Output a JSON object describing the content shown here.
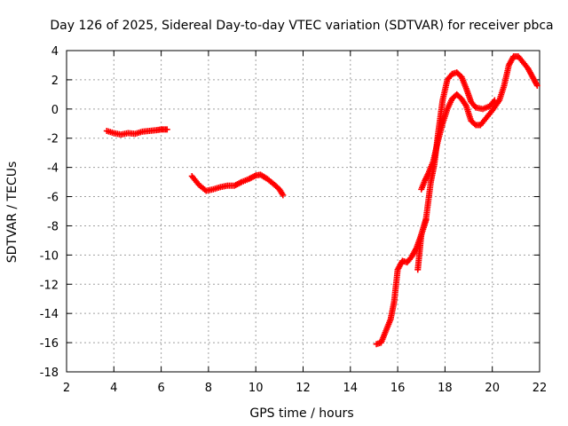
{
  "chart_data": {
    "type": "scatter",
    "title": "Day 126 of 2025, Sidereal Day-to-day VTEC variation (SDTVAR) for receiver pbca",
    "xlabel": "GPS time / hours",
    "ylabel": "SDTVAR / TECUs",
    "xlim": [
      2,
      22
    ],
    "ylim": [
      -18,
      4
    ],
    "x_ticks": [
      2,
      4,
      6,
      8,
      10,
      12,
      14,
      16,
      18,
      20,
      22
    ],
    "y_ticks": [
      -18,
      -16,
      -14,
      -12,
      -10,
      -8,
      -6,
      -4,
      -2,
      0,
      2,
      4
    ],
    "x_tick_labels": [
      "2",
      "4",
      "6",
      "8",
      "10",
      "12",
      "14",
      "16",
      "18",
      "20",
      "22"
    ],
    "y_tick_labels": [
      "-18",
      "-16",
      "-14",
      "-12",
      "-10",
      "-8",
      "-6",
      "-4",
      "-2",
      "0",
      "2",
      "4"
    ],
    "grid": true,
    "marker": "+",
    "color": "#ff0000",
    "series": [
      {
        "name": "segment-1",
        "x": [
          3.7,
          4.0,
          4.3,
          4.6,
          4.9,
          5.2,
          5.5,
          5.8,
          6.0,
          6.25
        ],
        "y": [
          -1.5,
          -1.65,
          -1.75,
          -1.65,
          -1.7,
          -1.55,
          -1.5,
          -1.45,
          -1.4,
          -1.4
        ]
      },
      {
        "name": "segment-2",
        "x": [
          7.3,
          7.6,
          7.9,
          8.2,
          8.5,
          8.8,
          9.1,
          9.4,
          9.7,
          10.0,
          10.2,
          10.5,
          10.8,
          11.0,
          11.15
        ],
        "y": [
          -4.6,
          -5.2,
          -5.6,
          -5.5,
          -5.35,
          -5.25,
          -5.25,
          -5.0,
          -4.8,
          -4.55,
          -4.5,
          -4.8,
          -5.2,
          -5.5,
          -5.9
        ]
      },
      {
        "name": "segment-3a",
        "x": [
          15.1,
          15.3,
          15.5,
          15.7,
          15.85,
          16.0,
          16.2,
          16.4,
          16.6,
          16.8,
          17.0,
          17.2
        ],
        "y": [
          -16.1,
          -16.0,
          -15.2,
          -14.4,
          -13.2,
          -11.0,
          -10.4,
          -10.5,
          -10.1,
          -9.5,
          -8.6,
          -7.6
        ]
      },
      {
        "name": "segment-3b",
        "x": [
          16.85,
          17.0,
          17.2,
          17.4,
          17.55,
          17.7,
          17.9,
          18.1,
          18.3,
          18.5,
          18.7,
          18.9,
          19.1,
          19.3,
          19.6,
          19.9,
          20.1
        ],
        "y": [
          -11.0,
          -8.6,
          -7.5,
          -5.0,
          -3.8,
          -1.8,
          0.6,
          2.0,
          2.4,
          2.5,
          2.2,
          1.4,
          0.5,
          0.1,
          0.0,
          0.2,
          0.6
        ]
      },
      {
        "name": "segment-3c",
        "x": [
          17.0,
          17.15,
          17.3,
          17.5,
          17.7,
          17.9,
          18.1,
          18.3,
          18.5,
          18.7,
          18.9,
          19.1,
          19.3,
          19.5,
          19.7,
          20.0,
          20.3,
          20.5,
          20.7,
          20.9,
          21.1,
          21.3,
          21.5,
          21.7,
          21.9
        ],
        "y": [
          -5.5,
          -4.9,
          -4.4,
          -3.6,
          -2.2,
          -1.0,
          0.0,
          0.7,
          1.0,
          0.7,
          0.2,
          -0.8,
          -1.1,
          -1.1,
          -0.7,
          -0.1,
          0.6,
          1.6,
          3.0,
          3.6,
          3.6,
          3.2,
          2.8,
          2.2,
          1.6
        ]
      }
    ]
  }
}
